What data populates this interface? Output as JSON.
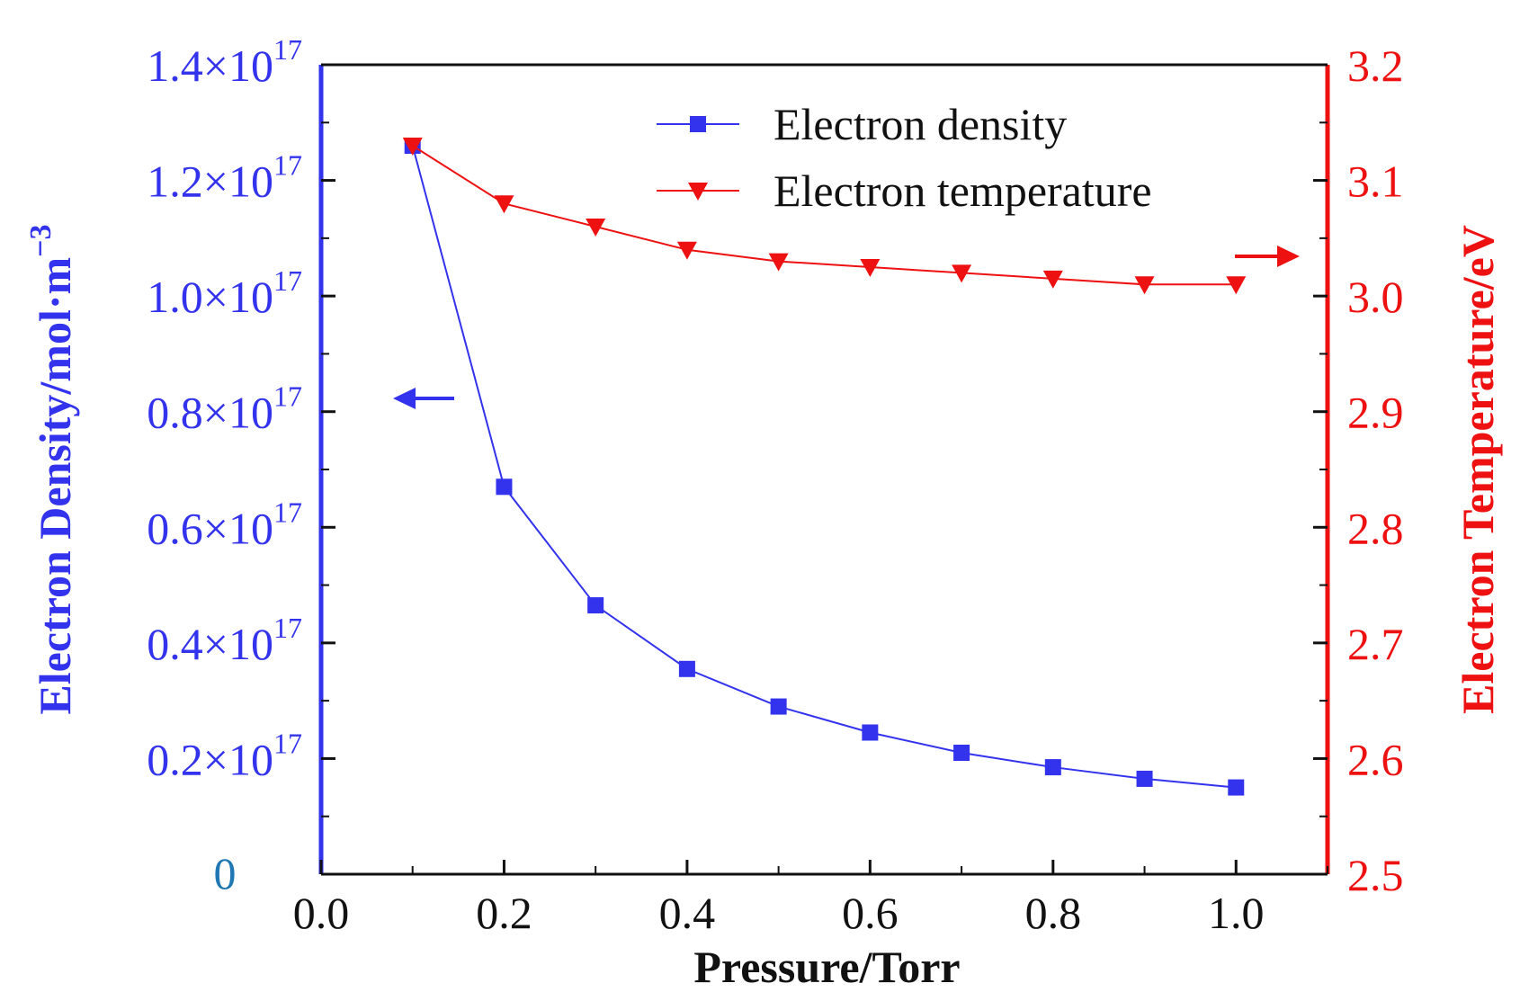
{
  "chart_data": {
    "type": "line",
    "title": "",
    "xlabel": "Pressure/Torr",
    "xlim": [
      0.0,
      1.1
    ],
    "xticks": [
      0.0,
      0.2,
      0.4,
      0.6,
      0.8,
      1.0
    ],
    "xtick_labels": [
      "0.0",
      "0.2",
      "0.4",
      "0.6",
      "0.8",
      "1.0"
    ],
    "x": [
      0.1,
      0.2,
      0.3,
      0.4,
      0.5,
      0.6,
      0.7,
      0.8,
      0.9,
      1.0
    ],
    "left_axis": {
      "label": "Electron Density/mol·m",
      "label_exponent": "−3",
      "ylim": [
        0,
        1.4e+17
      ],
      "ticks": [
        0,
        2e+16,
        4e+16,
        6e+16,
        8e+16,
        1e+17,
        1.2e+17,
        1.4e+17
      ],
      "tick_labels": [
        "0",
        "0.2×10",
        "0.4×10",
        "0.6×10",
        "0.8×10",
        "1.0×10",
        "1.2×10",
        "1.4×10"
      ],
      "tick_exponent": "17",
      "color": "#3333ee",
      "zero_label_color": "#1f77b4"
    },
    "right_axis": {
      "label": "Electron Temperature/eV",
      "ylim": [
        2.5,
        3.2
      ],
      "ticks": [
        2.5,
        2.6,
        2.7,
        2.8,
        2.9,
        3.0,
        3.1,
        3.2
      ],
      "tick_labels": [
        "2.5",
        "2.6",
        "2.7",
        "2.8",
        "2.9",
        "3.0",
        "3.1",
        "3.2"
      ],
      "color": "#ee1111"
    },
    "series": [
      {
        "name": "Electron density",
        "axis": "left",
        "marker": "square",
        "color": "#3333ee",
        "values": [
          1.26e+17,
          6.7e+16,
          4.65e+16,
          3.55e+16,
          2.9e+16,
          2.45e+16,
          2.1e+16,
          1.85e+16,
          1.65e+16,
          1.5e+16
        ]
      },
      {
        "name": "Electron temperature",
        "axis": "right",
        "marker": "triangle-down",
        "color": "#ee1111",
        "values": [
          3.13,
          3.08,
          3.06,
          3.04,
          3.03,
          3.025,
          3.02,
          3.015,
          3.01,
          3.01
        ]
      }
    ],
    "legend": {
      "position": "top-right",
      "entries": [
        "Electron density",
        "Electron temperature"
      ]
    },
    "annotations": [
      {
        "type": "arrow",
        "direction": "left",
        "points_to": "left axis",
        "color": "#3333ee"
      },
      {
        "type": "arrow",
        "direction": "right",
        "points_to": "right axis",
        "color": "#ee1111"
      }
    ]
  }
}
